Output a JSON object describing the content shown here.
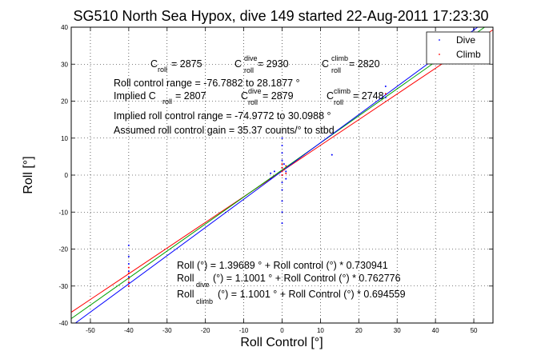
{
  "chart_data": {
    "type": "scatter",
    "title": "SG510 North Sea Hypox, dive 149 started 22-Aug-2011 17:23:30",
    "xlabel": "Roll Control [°]",
    "ylabel": "Roll [°]",
    "xlim": [
      -55,
      55
    ],
    "ylim": [
      -40,
      40
    ],
    "xticks": [
      -50,
      -40,
      -30,
      -20,
      -10,
      0,
      10,
      20,
      30,
      40,
      50
    ],
    "yticks": [
      -40,
      -30,
      -20,
      -10,
      0,
      10,
      20,
      30,
      40
    ],
    "grid": "dotted",
    "legend_placement": "top-right",
    "legend": [
      {
        "name": "Dive",
        "color": "#0000ff"
      },
      {
        "name": "Climb",
        "color": "#ff0000"
      }
    ],
    "series": [
      {
        "name": "Dive",
        "color": "#0000ff",
        "points": [
          [
            -40,
            -19
          ],
          [
            -40,
            -22
          ],
          [
            -40,
            -24
          ],
          [
            -40,
            -26
          ],
          [
            -40,
            -27.5
          ],
          [
            -40,
            -29
          ],
          [
            -40,
            -30
          ],
          [
            -3,
            -1
          ],
          [
            -3,
            0.5
          ],
          [
            -2,
            1
          ],
          [
            0,
            -13
          ],
          [
            0,
            -10
          ],
          [
            0,
            -7
          ],
          [
            0,
            -4
          ],
          [
            0,
            -2
          ],
          [
            0,
            0
          ],
          [
            0,
            2
          ],
          [
            0,
            4
          ],
          [
            0,
            6
          ],
          [
            0,
            8
          ],
          [
            0,
            10
          ],
          [
            0.5,
            3
          ],
          [
            1,
            1
          ],
          [
            1,
            -1
          ],
          [
            13,
            5.5
          ],
          [
            27,
            24
          ],
          [
            27,
            21
          ],
          [
            50,
            39.5
          ]
        ]
      },
      {
        "name": "Climb",
        "color": "#ff0000",
        "points": [
          [
            -40,
            -25
          ],
          [
            -40,
            -26.5
          ],
          [
            -40,
            -28
          ],
          [
            -40,
            -29
          ],
          [
            -40,
            -30
          ],
          [
            0,
            0
          ],
          [
            0,
            1
          ],
          [
            0,
            2
          ],
          [
            0,
            3
          ],
          [
            0.5,
            1.5
          ],
          [
            1,
            2.5
          ],
          [
            1,
            0.5
          ],
          [
            27,
            22
          ]
        ]
      }
    ],
    "fit_lines": [
      {
        "color": "#ff0000",
        "intercept": 1.1001,
        "slope": 0.694559
      },
      {
        "color": "#00a000",
        "intercept": 1.39689,
        "slope": 0.730941
      },
      {
        "color": "#0000ff",
        "intercept": 1.1001,
        "slope": 0.762776
      }
    ],
    "annotations": {
      "croll": {
        "base": "C",
        "sub": "roll",
        "value": " = 2875"
      },
      "croll_dive": {
        "base": "C",
        "sup": "dive",
        "sub": "roll",
        "value": " = 2930"
      },
      "croll_climb": {
        "base": "C",
        "sup": "climb",
        "sub": "roll",
        "value": " = 2820"
      },
      "range_line": "Roll control range = -76.7882 to 28.1877 °",
      "implied_prefix": "Implied C",
      "implied_sub": "roll",
      "implied_value": " = 2807",
      "implied_dive": {
        "base": "C",
        "sup": "dive",
        "sub": "roll",
        "value": " = 2879"
      },
      "implied_climb": {
        "base": "C",
        "sup": "climb",
        "sub": "roll",
        "value": " = 2748"
      },
      "implied_range_line": "Implied roll control range = -74.9772 to 30.0988 °",
      "gain_line": "Assumed roll control gain = 35.37 counts/° to stbd",
      "fit1": "Roll (°) = 1.39689 ° + Roll control (°) * 0.730941",
      "fit2_prefix": "Roll",
      "fit2_sub": "dive",
      "fit2_rest": " (°) = 1.1001 ° + Roll Control (°) * 0.762776",
      "fit3_prefix": "Roll",
      "fit3_sub": "climb",
      "fit3_rest": " (°) = 1.1001 ° + Roll Control (°) * 0.694559"
    }
  }
}
